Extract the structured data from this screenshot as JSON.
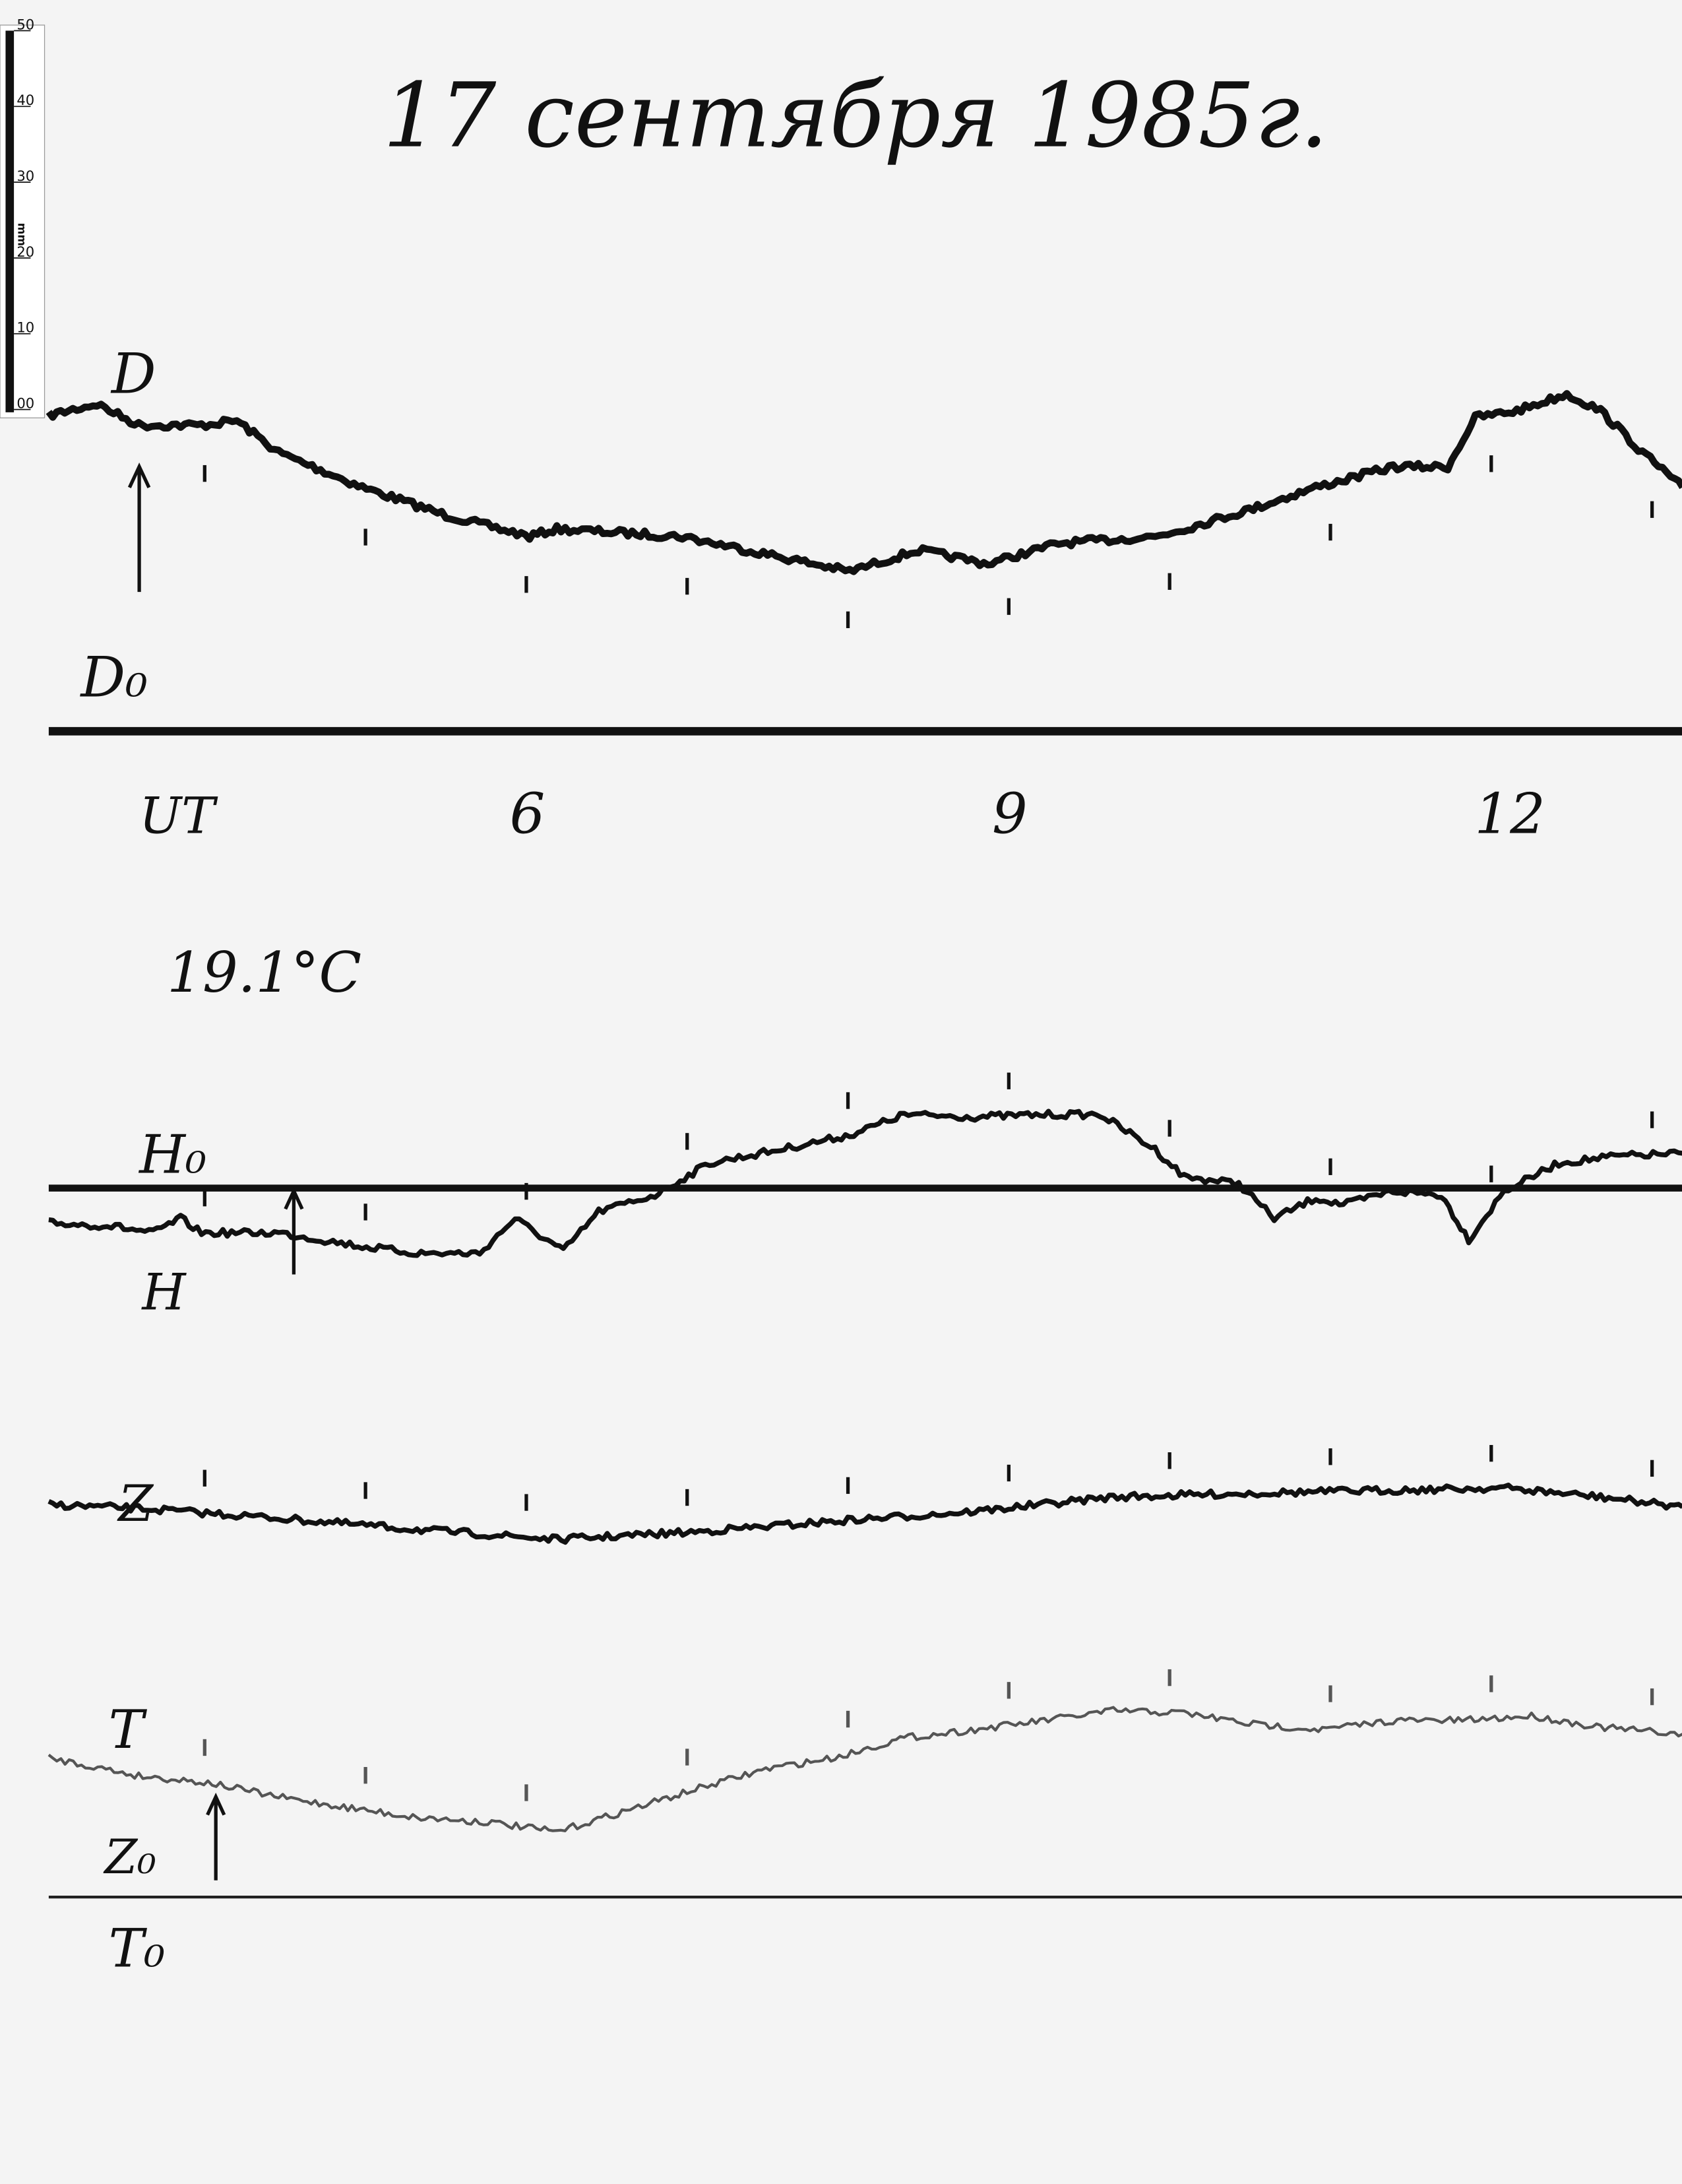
{
  "title": "17 сентября 1985г.",
  "temperature": "19.1°C",
  "ruler": {
    "unit": "mm",
    "ticks": [
      "00",
      "10",
      "20",
      "30",
      "40",
      "50"
    ]
  },
  "colors": {
    "paper": "#f4f4f4",
    "ink": "#111111",
    "t_trace": "#555555"
  },
  "chart_data": {
    "type": "line",
    "title": "17 сентября 1985г.",
    "xlabel": "UT",
    "x_tick_labels": [
      "6",
      "9",
      "12"
    ],
    "x_ticks": [
      6,
      9,
      12
    ],
    "xlim": [
      3,
      13.2
    ],
    "y_units": "mm above channel baseline",
    "grid": false,
    "channels": [
      {
        "name": "D",
        "baseline_label": "D0",
        "x": [
          3.03,
          3.33,
          3.59,
          3.98,
          4.2,
          4.46,
          4.98,
          5.5,
          6.02,
          6.19,
          6.97,
          7.58,
          8.01,
          8.44,
          8.87,
          9.31,
          9.91,
          10.09,
          10.52,
          10.91,
          11.39,
          11.73,
          11.9,
          12.16,
          12.47,
          12.68,
          12.94,
          13.19
        ],
        "y": [
          41.7,
          43.2,
          40.4,
          40.4,
          41.0,
          36.8,
          32.2,
          28.5,
          25.7,
          26.7,
          25.7,
          23.0,
          21.1,
          23.9,
          22.1,
          24.8,
          25.7,
          26.7,
          29.4,
          32.2,
          34.9,
          34.9,
          41.4,
          42.3,
          44.5,
          42.3,
          36.8,
          32.2
        ]
      },
      {
        "name": "H",
        "baseline_label": "H0",
        "x": [
          3.03,
          3.42,
          3.68,
          3.85,
          3.98,
          4.46,
          4.98,
          5.32,
          5.71,
          5.93,
          6.06,
          6.23,
          6.45,
          6.8,
          7.14,
          7.58,
          8.01,
          8.35,
          8.79,
          9.22,
          9.57,
          9.91,
          10.09,
          10.43,
          10.65,
          10.91,
          11.08,
          11.39,
          11.69,
          11.86,
          12.08,
          12.42,
          12.77,
          13.19
        ],
        "y": [
          -4.6,
          -5.0,
          -5.9,
          -4.0,
          -5.9,
          -5.9,
          -7.7,
          -8.6,
          -8.6,
          -4.0,
          -5.9,
          -8.3,
          -3.1,
          -0.9,
          3.3,
          5.1,
          7.0,
          9.7,
          9.4,
          9.7,
          9.7,
          5.1,
          1.5,
          0.6,
          -4.0,
          -1.3,
          -2.2,
          -0.4,
          -0.9,
          -6.8,
          -0.4,
          3.3,
          4.2,
          4.6
        ]
      },
      {
        "name": "Z",
        "baseline_label": "Z0",
        "x": [
          3.03,
          3.59,
          4.46,
          5.32,
          6.19,
          7.05,
          7.92,
          8.79,
          9.65,
          10.52,
          11.39,
          12.08,
          12.68,
          13.19
        ],
        "y": [
          51.8,
          51.3,
          50.0,
          48.5,
          47.2,
          48.2,
          49.6,
          50.9,
          52.8,
          53.3,
          53.7,
          54.0,
          52.8,
          51.5
        ]
      },
      {
        "name": "T",
        "baseline_label": "T0",
        "x": [
          3.03,
          3.59,
          4.02,
          4.46,
          4.89,
          5.32,
          5.76,
          6.19,
          6.62,
          7.05,
          7.49,
          7.92,
          8.35,
          8.79,
          9.22,
          9.65,
          10.09,
          10.52,
          10.95,
          11.39,
          11.82,
          12.25,
          12.68,
          13.19
        ],
        "y": [
          18.4,
          16.0,
          15.1,
          13.2,
          11.8,
          10.5,
          9.9,
          8.6,
          11.4,
          14.2,
          16.9,
          18.4,
          21.0,
          22.1,
          23.3,
          24.6,
          24.3,
          22.8,
          22.1,
          23.3,
          23.3,
          23.9,
          22.4,
          21.5
        ]
      }
    ],
    "hour_marks": [
      4,
      5,
      6,
      7,
      8,
      9,
      10,
      11,
      12,
      13
    ]
  },
  "labels": {
    "D": "D",
    "D0": "D₀",
    "UT": "UT",
    "H0": "H₀",
    "H": "H",
    "Z": "Z",
    "Z0": "Z₀",
    "T": "T",
    "T0": "T₀"
  }
}
